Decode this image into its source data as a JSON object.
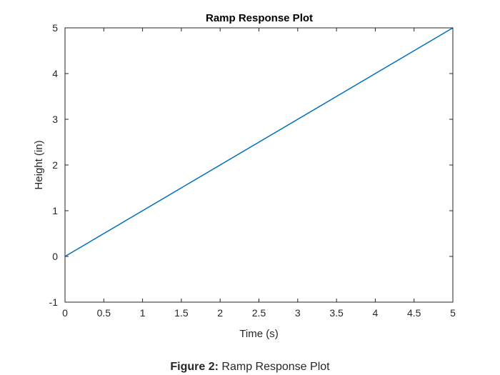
{
  "chart_data": {
    "type": "line",
    "title": "Ramp Response Plot",
    "xlabel": "Time (s)",
    "ylabel": "Height (in)",
    "xlim": [
      0,
      5
    ],
    "ylim": [
      -1,
      5
    ],
    "xticks": [
      0,
      0.5,
      1,
      1.5,
      2,
      2.5,
      3,
      3.5,
      4,
      4.5,
      5
    ],
    "xtick_labels": [
      "0",
      "0.5",
      "1",
      "1.5",
      "2",
      "2.5",
      "3",
      "3.5",
      "4",
      "4.5",
      "5"
    ],
    "yticks": [
      -1,
      0,
      1,
      2,
      3,
      4,
      5
    ],
    "ytick_labels": [
      "-1",
      "0",
      "1",
      "2",
      "3",
      "4",
      "5"
    ],
    "grid": false,
    "series": [
      {
        "x": [
          0,
          5
        ],
        "y": [
          0,
          5
        ],
        "color": "#0072BD"
      }
    ]
  },
  "caption": {
    "label": "Figure 2:",
    "text": "Ramp Response Plot"
  }
}
